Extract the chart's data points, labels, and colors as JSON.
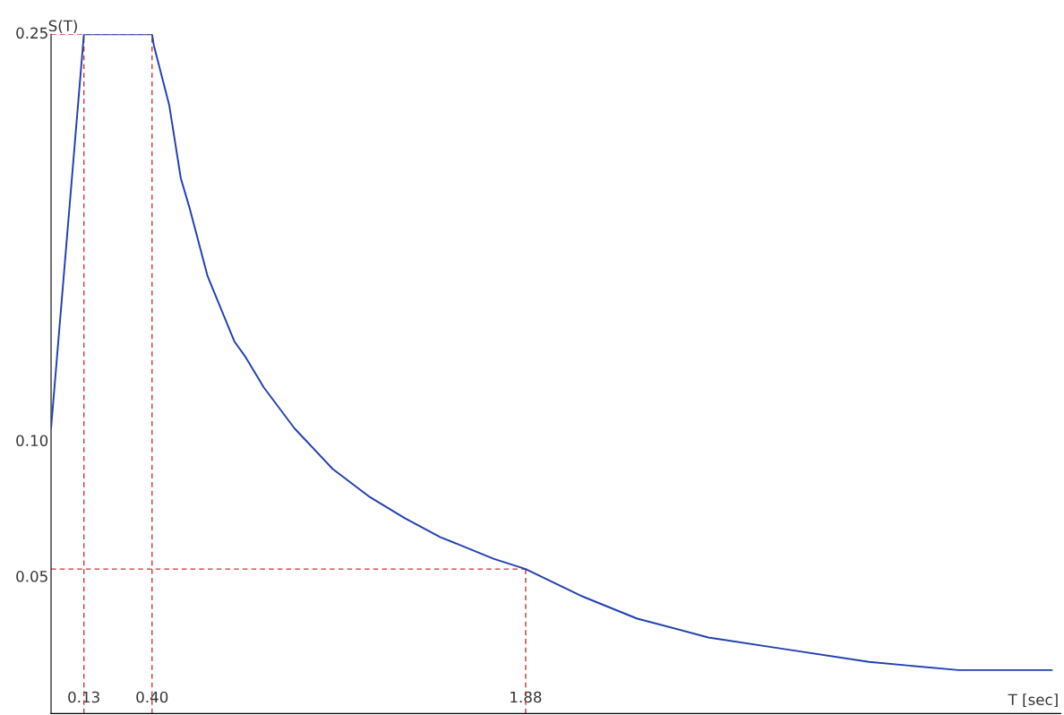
{
  "chart_data": {
    "type": "line",
    "xlabel": "T [sec]",
    "ylabel": "S(T)",
    "x": [
      0,
      0.13,
      0.4,
      0.407,
      0.468,
      0.514,
      0.549,
      0.62,
      0.726,
      0.772,
      0.843,
      0.964,
      1.116,
      1.258,
      1.4,
      1.541,
      1.753,
      1.88,
      2.108,
      2.32,
      2.604,
      2.887,
      3.241,
      3.595,
      3.964
    ],
    "series": [
      {
        "color": "#2040b0",
        "values": [
          0.105,
          0.25,
          0.25,
          0.246,
          0.224,
          0.197,
          0.186,
          0.161,
          0.137,
          0.131,
          0.12,
          0.105,
          0.09,
          0.08,
          0.072,
          0.065,
          0.057,
          0.0532,
          0.043,
          0.035,
          0.028,
          0.024,
          0.019,
          0.016,
          0.016
        ]
      }
    ],
    "xlim": [
      0,
      4
    ],
    "ylim": [
      0,
      0.25
    ],
    "xticks": [
      0.13,
      {
        "value": 0.4,
        "label": "0.40"
      },
      1.88
    ],
    "yticks": [
      0.25,
      {
        "value": 0.1,
        "label": "0.10"
      },
      0.05
    ],
    "ref_lines": [
      {
        "axis": "x",
        "value": 0.13,
        "color": "#cc3333",
        "line_style": "dashed"
      },
      {
        "axis": "x",
        "value": 0.4,
        "color": "#cc3333",
        "line_style": "dashed"
      },
      {
        "axis": "x",
        "value": 1.88,
        "color": "#cc3333",
        "line_style": "dashed"
      },
      {
        "axis": "y",
        "value": 0.25,
        "color": "#cc3333",
        "line_style": "dashed"
      },
      {
        "axis": "y",
        "value": 0.0532,
        "color": "#cc3333",
        "line_style": "dashed"
      }
    ],
    "grid": false,
    "marker": "none",
    "line_style": "solid",
    "legend": false
  }
}
